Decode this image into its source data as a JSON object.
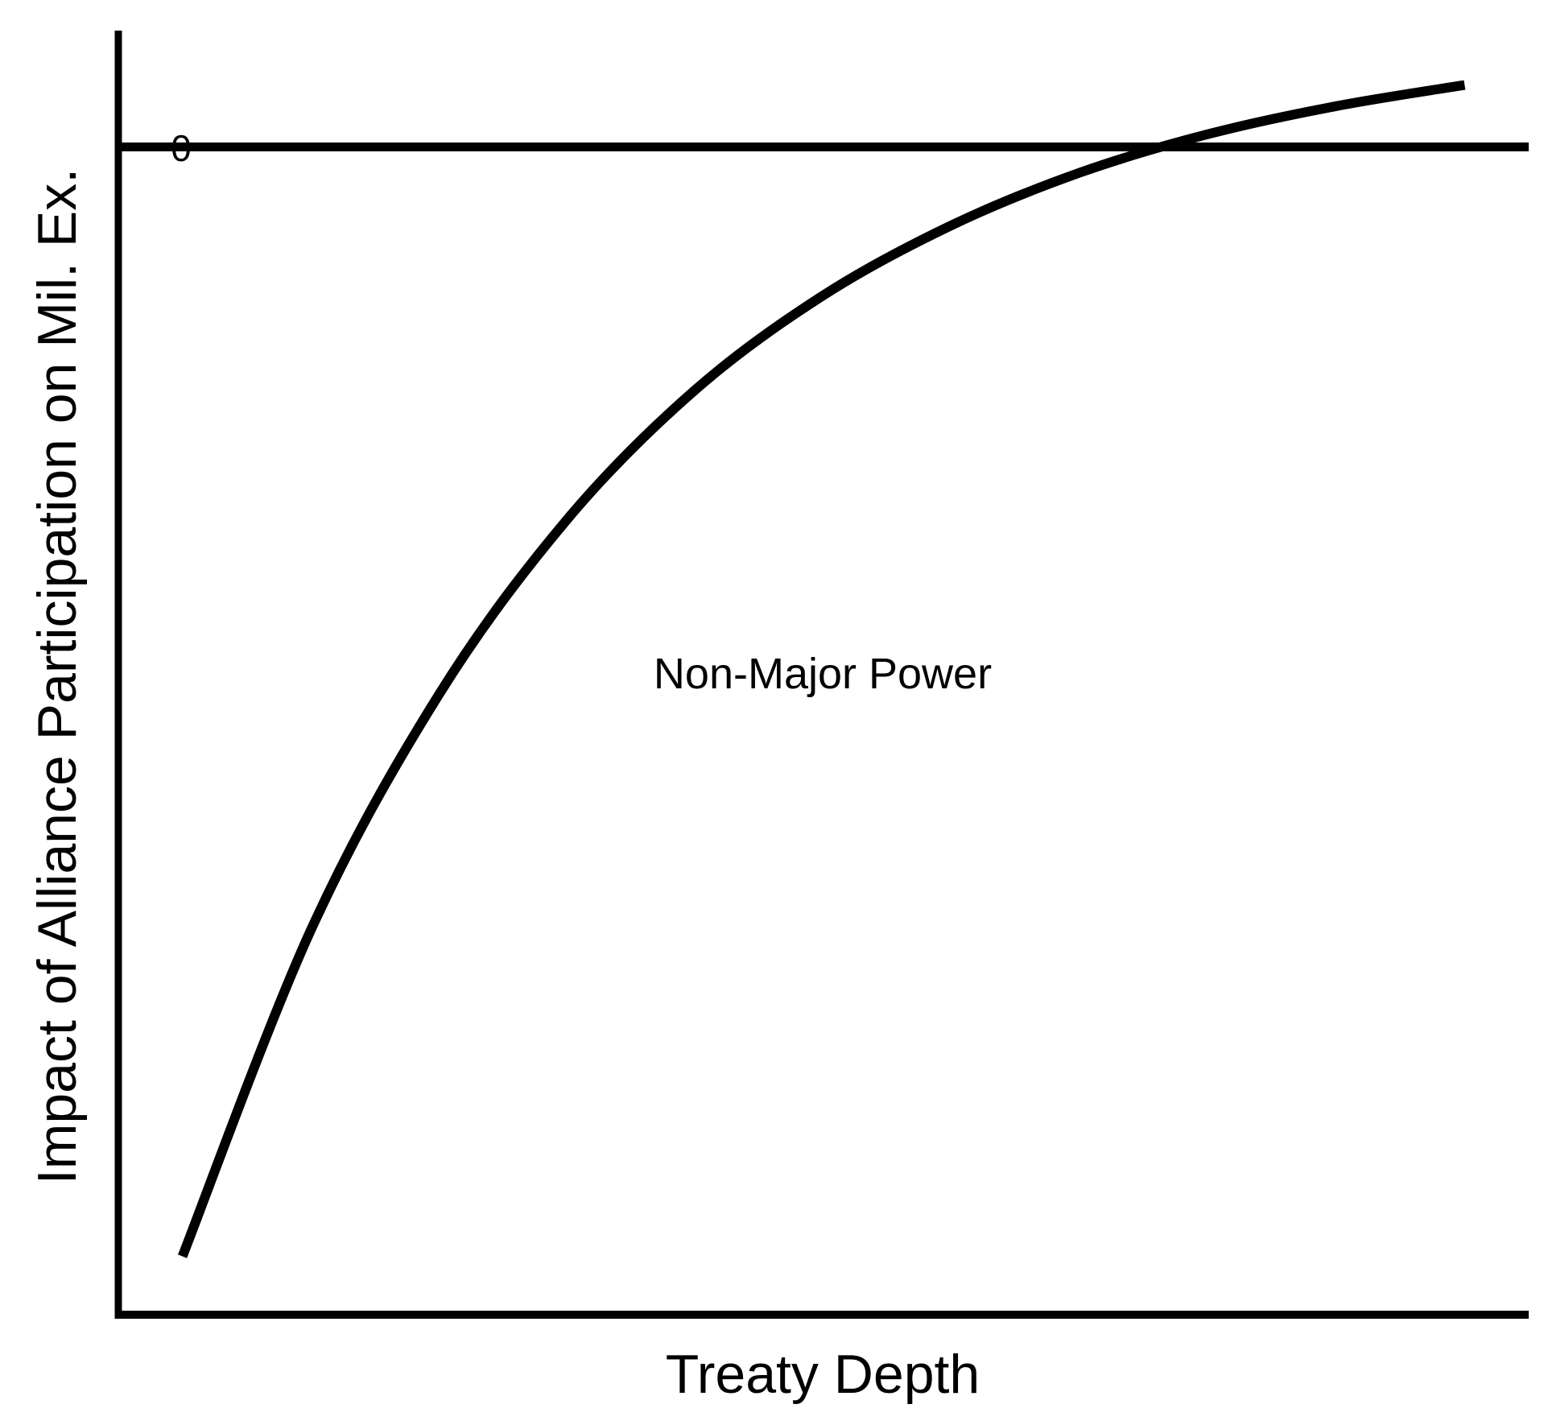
{
  "chart_data": {
    "type": "line",
    "title": "",
    "xlabel": "Treaty Depth",
    "ylabel": "Impact of Alliance Participation on Mil. Ex.",
    "ylim": [
      -1.0,
      0.05
    ],
    "xlim": [
      0,
      1.1
    ],
    "grid": false,
    "legend": "none",
    "reference_line": {
      "y": 0,
      "label": "0"
    },
    "yticks": [
      {
        "value": 0,
        "label": "0"
      }
    ],
    "series": [
      {
        "name": "Non-Major Power",
        "color": "#000000",
        "x": [
          0.05,
          0.15,
          0.25,
          0.35,
          0.45,
          0.55,
          0.65,
          0.75,
          0.85,
          0.95,
          1.05
        ],
        "y": [
          -0.95,
          -0.671,
          -0.469,
          -0.319,
          -0.208,
          -0.127,
          -0.067,
          -0.022,
          0.011,
          0.035,
          0.053
        ]
      }
    ],
    "annotations": [
      {
        "text": "Non-Major Power",
        "x": 0.55,
        "y": -0.39
      }
    ]
  },
  "colors": {
    "axis": "#000000",
    "line": "#000000",
    "background": "#ffffff"
  }
}
